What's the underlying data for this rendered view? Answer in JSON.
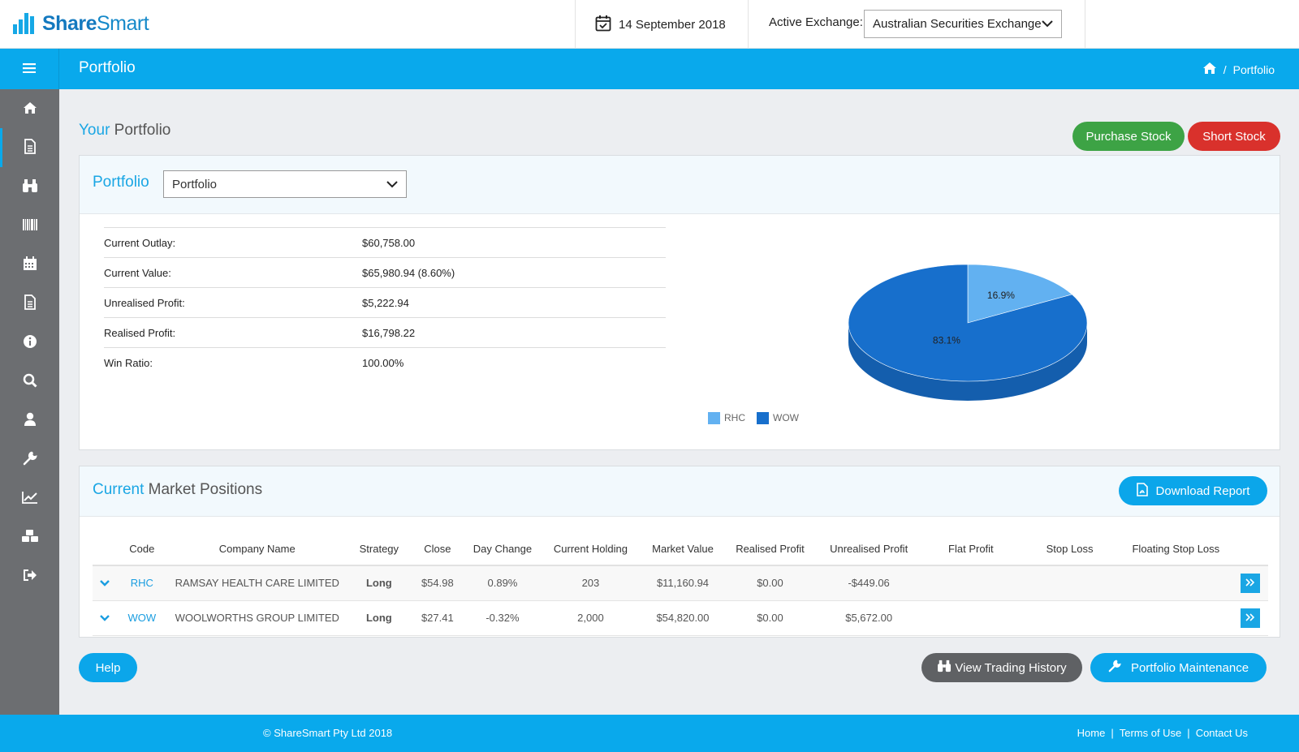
{
  "brand": {
    "share": "Share",
    "smart": "Smart"
  },
  "header": {
    "date": "14 September 2018",
    "exchange_label": "Active Exchange:",
    "exchange_value": "Australian Securities Exchange"
  },
  "titlebar": {
    "title": "Portfolio",
    "breadcrumb_current": "Portfolio"
  },
  "sidebar": {
    "items": [
      "home-icon",
      "file-icon",
      "binoculars-icon",
      "barcode-icon",
      "calendar-icon",
      "document-icon",
      "info-icon",
      "search-icon",
      "user-icon",
      "wrench-icon",
      "line-chart-icon",
      "cubes-icon",
      "sign-out-icon"
    ]
  },
  "page": {
    "heading_accent": "Your",
    "heading_rest": " Portfolio",
    "purchase_label": "Purchase Stock",
    "short_label": "Short Stock"
  },
  "portfolio_card": {
    "title": "Portfolio",
    "select_value": "Portfolio",
    "summary": [
      {
        "label": "Current Outlay:",
        "value": "$60,758.00"
      },
      {
        "label": "Current Value:",
        "value": "$65,980.94 (8.60%)"
      },
      {
        "label": "Unrealised Profit:",
        "value": "$5,222.94"
      },
      {
        "label": "Realised Profit:",
        "value": "$16,798.22"
      },
      {
        "label": "Win Ratio:",
        "value": "100.00%"
      }
    ]
  },
  "chart_data": {
    "type": "pie",
    "categories": [
      "RHC",
      "WOW"
    ],
    "values": [
      16.9,
      83.1
    ],
    "labels": [
      "16.9%",
      "83.1%"
    ],
    "colors": [
      "#62b1f1",
      "#176fcc"
    ],
    "legend": "bottom"
  },
  "positions": {
    "title_accent": "Current",
    "title_rest": " Market Positions",
    "download_label": "Download Report",
    "columns": [
      "Code",
      "Company Name",
      "Strategy",
      "Close",
      "Day Change",
      "Current Holding",
      "Market Value",
      "Realised Profit",
      "Unrealised Profit",
      "Flat Profit",
      "Stop Loss",
      "Floating Stop Loss"
    ],
    "rows": [
      {
        "code": "RHC",
        "company": "RAMSAY HEALTH CARE LIMITED",
        "strategy": "Long",
        "close": "$54.98",
        "day_change": "0.89%",
        "holding": "203",
        "market_value": "$11,160.94",
        "realised": "$0.00",
        "unrealised": "-$449.06"
      },
      {
        "code": "WOW",
        "company": "WOOLWORTHS GROUP LIMITED",
        "strategy": "Long",
        "close": "$27.41",
        "day_change": "-0.32%",
        "holding": "2,000",
        "market_value": "$54,820.00",
        "realised": "$0.00",
        "unrealised": "$5,672.00"
      }
    ]
  },
  "bottom_buttons": {
    "help": "Help",
    "trading_history": "View Trading History",
    "maintenance": "Portfolio Maintenance"
  },
  "footer": {
    "copyright": "© ShareSmart Pty Ltd 2018",
    "links": [
      "Home",
      "Terms of Use",
      "Contact Us"
    ]
  }
}
